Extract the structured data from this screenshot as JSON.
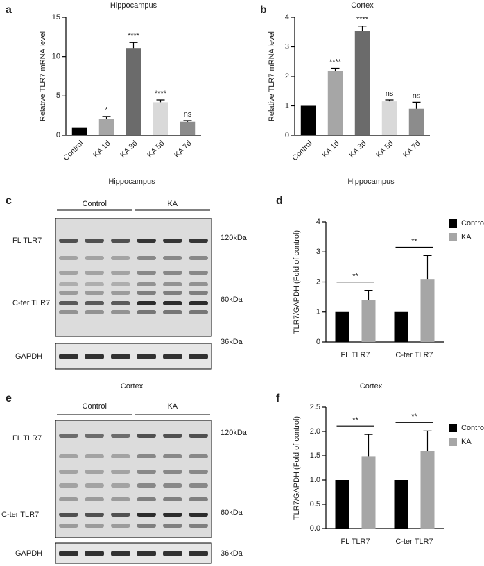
{
  "chart_data": [
    {
      "type": "bar",
      "panel": "a",
      "title": "Hippocampus",
      "ylabel": "Relative TLR7 mRNA level",
      "categories": [
        "Control",
        "KA 1d",
        "KA 3d",
        "KA 5d",
        "KA 7d"
      ],
      "values": [
        1,
        2.1,
        11.1,
        4.2,
        1.7
      ],
      "errors": [
        0,
        0.3,
        0.7,
        0.3,
        0.15
      ],
      "colors": [
        "#000000",
        "#a6a6a6",
        "#6b6b6b",
        "#d9d9d9",
        "#8c8c8c"
      ],
      "annotations": [
        null,
        "*",
        "****",
        "****",
        "ns"
      ],
      "ylim": [
        0,
        15
      ],
      "yticks": [
        0,
        5,
        10,
        15
      ]
    },
    {
      "type": "bar",
      "panel": "b",
      "title": "Cortex",
      "ylabel": "Relative TLR7 mRNA level",
      "categories": [
        "Control",
        "KA 1d",
        "KA 3d",
        "KA 5d",
        "KA 7d"
      ],
      "values": [
        1,
        2.17,
        3.55,
        1.15,
        0.9
      ],
      "errors": [
        0,
        0.1,
        0.15,
        0.05,
        0.22
      ],
      "colors": [
        "#000000",
        "#a6a6a6",
        "#6b6b6b",
        "#d9d9d9",
        "#8c8c8c"
      ],
      "annotations": [
        null,
        "****",
        "****",
        "ns",
        "ns"
      ],
      "ylim": [
        0,
        4
      ],
      "yticks": [
        0,
        1,
        2,
        3,
        4
      ]
    },
    {
      "type": "bar",
      "panel": "d",
      "title": "Hippocampus",
      "ylabel": "TLR7/GAPDH (Fold of control)",
      "categories": [
        "FL TLR7",
        "C-ter TLR7"
      ],
      "series": [
        {
          "name": "Control",
          "color": "#000000",
          "values": [
            1,
            1
          ],
          "errors": [
            0,
            0
          ]
        },
        {
          "name": "KA",
          "color": "#a6a6a6",
          "values": [
            1.4,
            2.1
          ],
          "errors": [
            0.32,
            0.78
          ]
        }
      ],
      "annotations": [
        "**",
        "**"
      ],
      "ylim": [
        0,
        4
      ],
      "yticks": [
        0,
        1,
        2,
        3,
        4
      ]
    },
    {
      "type": "bar",
      "panel": "f",
      "title": "Cortex",
      "ylabel": "TLR7/GAPDH (Fold of control)",
      "categories": [
        "FL TLR7",
        "C-ter TLR7"
      ],
      "series": [
        {
          "name": "Control",
          "color": "#000000",
          "values": [
            1,
            1
          ],
          "errors": [
            0,
            0
          ]
        },
        {
          "name": "KA",
          "color": "#a6a6a6",
          "values": [
            1.48,
            1.6
          ],
          "errors": [
            0.46,
            0.41
          ]
        }
      ],
      "annotations": [
        "**",
        "**"
      ],
      "ylim": [
        0,
        2.5
      ],
      "yticks": [
        {
          "value": 0,
          "label": "0.0"
        },
        0.5,
        {
          "value": 1,
          "label": "1.0"
        },
        1.5,
        {
          "value": 2,
          "label": "2.0"
        },
        2.5
      ]
    }
  ],
  "blots": [
    {
      "panel": "c",
      "title": "Hippocampus",
      "groups": [
        "Control",
        "KA"
      ],
      "rows": [
        "FL TLR7",
        "C-ter TLR7",
        "GAPDH"
      ],
      "sizes": [
        "120kDa",
        "60kDa",
        "36kDa"
      ]
    },
    {
      "panel": "e",
      "title": "Cortex",
      "groups": [
        "Control",
        "KA"
      ],
      "rows": [
        "FL TLR7",
        "C-ter TLR7",
        "GAPDH"
      ],
      "sizes": [
        "120kDa",
        "60kDa",
        "36kDa"
      ]
    }
  ]
}
